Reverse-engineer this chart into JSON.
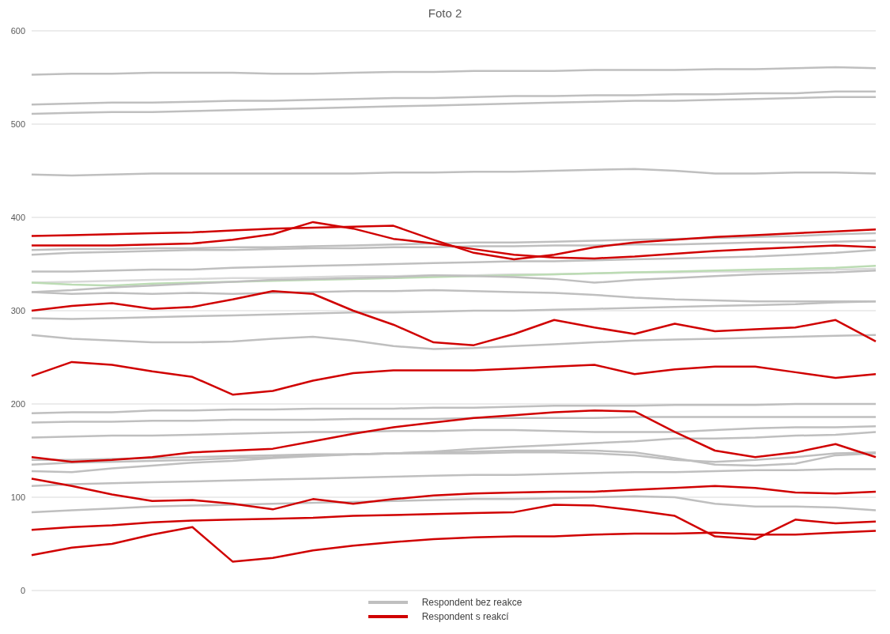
{
  "chart_data": {
    "type": "line",
    "title": "Foto 2",
    "categories": [
      null,
      null,
      null,
      null,
      null,
      null,
      null,
      null,
      null,
      null,
      null,
      null,
      null,
      null,
      null,
      null,
      null,
      null,
      null,
      null,
      null,
      null
    ],
    "ylim": [
      0,
      600
    ],
    "yticks": [
      0,
      100,
      200,
      300,
      400,
      500,
      600
    ],
    "grid": "y",
    "legend": "bottom",
    "tick_labels": "y",
    "marker": "none",
    "line_style": "solid",
    "series": [
      {
        "name": "Respondent bez reakce",
        "color": "#bfbfbf",
        "values": [
          553,
          554,
          554,
          555,
          555,
          555,
          554,
          554,
          555,
          556,
          556,
          557,
          557,
          557,
          558,
          558,
          558,
          559,
          559,
          560,
          561,
          560
        ]
      },
      {
        "color": "#bfbfbf",
        "values": [
          521,
          522,
          523,
          523,
          524,
          525,
          525,
          526,
          527,
          528,
          528,
          529,
          530,
          530,
          531,
          531,
          532,
          532,
          533,
          533,
          535,
          535
        ]
      },
      {
        "color": "#bfbfbf",
        "values": [
          511,
          512,
          513,
          513,
          514,
          515,
          516,
          517,
          518,
          519,
          520,
          521,
          522,
          523,
          524,
          525,
          525,
          526,
          527,
          528,
          529,
          529
        ]
      },
      {
        "color": "#bfbfbf",
        "values": [
          446,
          445,
          446,
          447,
          447,
          447,
          447,
          447,
          447,
          448,
          448,
          449,
          449,
          450,
          451,
          452,
          450,
          447,
          447,
          448,
          448,
          447
        ]
      },
      {
        "color": "#bfbfbf",
        "values": [
          365,
          366,
          366,
          367,
          367,
          368,
          368,
          369,
          370,
          371,
          372,
          373,
          373,
          374,
          375,
          376,
          377,
          378,
          379,
          380,
          382,
          383
        ]
      },
      {
        "color": "#bfbfbf",
        "values": [
          360,
          362,
          363,
          364,
          365,
          365,
          366,
          367,
          367,
          368,
          368,
          369,
          369,
          370,
          370,
          371,
          371,
          372,
          373,
          373,
          374,
          375
        ]
      },
      {
        "color": "#bfbfbf",
        "values": [
          342,
          342,
          343,
          344,
          344,
          346,
          347,
          348,
          349,
          350,
          351,
          352,
          353,
          353,
          354,
          355,
          356,
          357,
          358,
          360,
          362,
          365
        ]
      },
      {
        "color": "#d9d9d9",
        "values": [
          330,
          331,
          332,
          333,
          334,
          335,
          335,
          336,
          337,
          337,
          338,
          338,
          339,
          339,
          340,
          341,
          341,
          342,
          342,
          343,
          344,
          345
        ]
      },
      {
        "color": "#bcdcb4",
        "values": [
          330,
          328,
          327,
          329,
          330,
          331,
          332,
          333,
          334,
          335,
          336,
          337,
          338,
          339,
          340,
          341,
          342,
          343,
          344,
          345,
          346,
          348
        ]
      },
      {
        "color": "#bfbfbf",
        "values": [
          320,
          322,
          325,
          327,
          329,
          331,
          333,
          334,
          335,
          336,
          338,
          337,
          336,
          334,
          330,
          333,
          335,
          337,
          339,
          340,
          341,
          343
        ]
      },
      {
        "color": "#bfbfbf",
        "values": [
          320,
          318,
          319,
          318,
          319,
          318,
          319,
          320,
          321,
          321,
          322,
          321,
          320,
          319,
          317,
          314,
          312,
          311,
          310,
          310,
          310,
          310
        ]
      },
      {
        "color": "#bfbfbf",
        "values": [
          292,
          291,
          292,
          293,
          294,
          295,
          296,
          297,
          298,
          298,
          299,
          300,
          300,
          301,
          302,
          303,
          304,
          305,
          306,
          307,
          309,
          310
        ]
      },
      {
        "color": "#bfbfbf",
        "values": [
          274,
          270,
          268,
          266,
          266,
          267,
          270,
          272,
          268,
          262,
          259,
          260,
          262,
          264,
          266,
          268,
          269,
          270,
          271,
          272,
          273,
          274
        ]
      },
      {
        "color": "#bfbfbf",
        "values": [
          190,
          191,
          191,
          193,
          193,
          194,
          194,
          195,
          195,
          195,
          196,
          196,
          197,
          198,
          198,
          198,
          199,
          199,
          199,
          200,
          200,
          200
        ]
      },
      {
        "color": "#bfbfbf",
        "values": [
          180,
          181,
          181,
          182,
          182,
          183,
          183,
          183,
          184,
          184,
          184,
          185,
          185,
          185,
          185,
          186,
          186,
          186,
          186,
          186,
          186,
          186
        ]
      },
      {
        "color": "#bfbfbf",
        "values": [
          164,
          165,
          166,
          166,
          167,
          168,
          169,
          170,
          170,
          171,
          171,
          172,
          172,
          171,
          170,
          170,
          170,
          172,
          174,
          175,
          175,
          176
        ]
      },
      {
        "color": "#bfbfbf",
        "values": [
          140,
          140,
          141,
          142,
          143,
          144,
          145,
          146,
          146,
          147,
          147,
          147,
          148,
          148,
          147,
          145,
          140,
          138,
          140,
          143,
          147,
          148
        ]
      },
      {
        "color": "#bfbfbf",
        "values": [
          135,
          137,
          138,
          139,
          140,
          142,
          143,
          145,
          146,
          147,
          148,
          149,
          150,
          150,
          150,
          148,
          142,
          135,
          134,
          136,
          145,
          147
        ]
      },
      {
        "color": "#bfbfbf",
        "values": [
          128,
          127,
          131,
          134,
          137,
          139,
          142,
          144,
          146,
          147,
          149,
          152,
          154,
          156,
          158,
          160,
          163,
          163,
          164,
          166,
          167,
          170
        ]
      },
      {
        "color": "#bfbfbf",
        "values": [
          112,
          114,
          115,
          116,
          117,
          118,
          119,
          120,
          121,
          122,
          123,
          124,
          124,
          125,
          126,
          127,
          127,
          128,
          129,
          129,
          130,
          130
        ]
      },
      {
        "color": "#bfbfbf",
        "values": [
          84,
          86,
          88,
          90,
          91,
          92,
          93,
          94,
          95,
          96,
          97,
          98,
          98,
          99,
          100,
          101,
          100,
          93,
          90,
          90,
          89,
          86
        ]
      },
      {
        "name": "Respondent s reakcí",
        "color": "#d00000",
        "values": [
          380,
          381,
          382,
          383,
          384,
          386,
          388,
          389,
          390,
          391,
          376,
          362,
          355,
          360,
          368,
          373,
          376,
          379,
          381,
          383,
          385,
          387
        ]
      },
      {
        "color": "#d00000",
        "values": [
          370,
          370,
          370,
          371,
          372,
          376,
          382,
          395,
          388,
          377,
          372,
          366,
          360,
          357,
          356,
          358,
          361,
          364,
          366,
          368,
          370,
          368
        ]
      },
      {
        "color": "#d00000",
        "values": [
          300,
          305,
          308,
          302,
          304,
          312,
          321,
          318,
          300,
          285,
          266,
          263,
          275,
          290,
          282,
          275,
          286,
          278,
          280,
          282,
          290,
          267
        ]
      },
      {
        "color": "#d00000",
        "values": [
          230,
          245,
          242,
          235,
          229,
          210,
          214,
          225,
          233,
          236,
          236,
          236,
          238,
          240,
          242,
          232,
          237,
          240,
          240,
          234,
          228,
          232
        ]
      },
      {
        "color": "#d00000",
        "values": [
          143,
          138,
          140,
          143,
          148,
          150,
          152,
          160,
          168,
          175,
          180,
          185,
          188,
          191,
          193,
          192,
          170,
          150,
          143,
          148,
          157,
          143
        ]
      },
      {
        "color": "#d00000",
        "values": [
          120,
          112,
          103,
          96,
          97,
          93,
          87,
          98,
          93,
          98,
          102,
          104,
          105,
          106,
          106,
          108,
          110,
          112,
          110,
          105,
          104,
          106
        ]
      },
      {
        "color": "#d00000",
        "values": [
          65,
          68,
          70,
          73,
          75,
          76,
          77,
          78,
          80,
          81,
          82,
          83,
          84,
          92,
          91,
          86,
          80,
          58,
          55,
          76,
          72,
          74
        ]
      },
      {
        "color": "#d00000",
        "values": [
          38,
          46,
          50,
          60,
          68,
          31,
          35,
          43,
          48,
          52,
          55,
          57,
          58,
          58,
          60,
          61,
          61,
          62,
          60,
          60,
          62,
          64
        ]
      }
    ]
  }
}
